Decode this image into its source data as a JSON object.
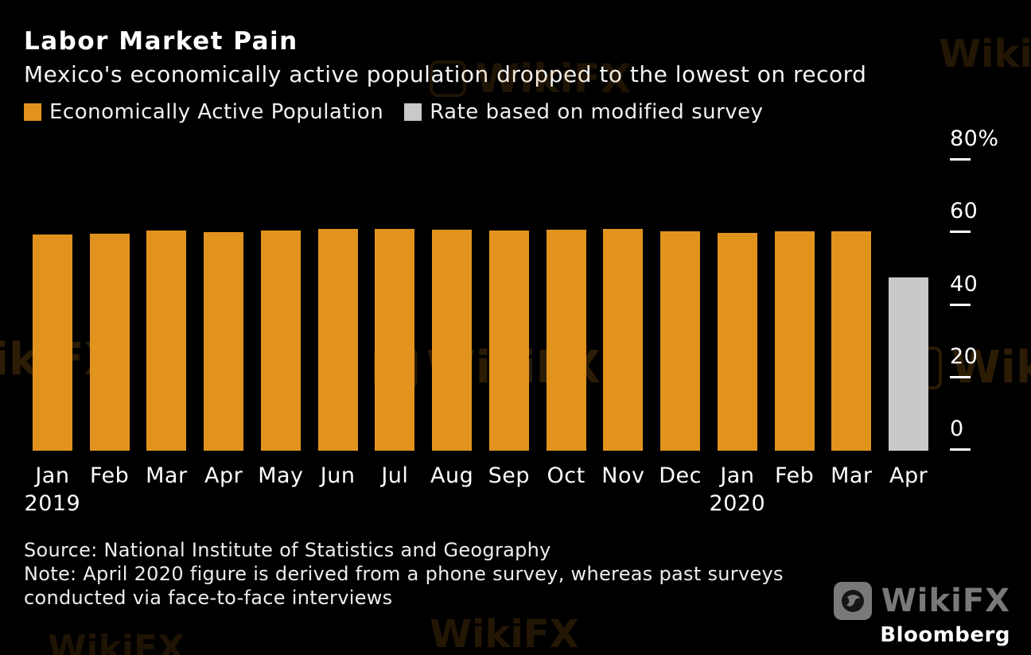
{
  "header": {
    "title": "Labor Market Pain",
    "subtitle": "Mexico's economically active population dropped to the lowest on record"
  },
  "legend": [
    {
      "label": "Economically Active Population",
      "color": "#E2931E"
    },
    {
      "label": "Rate based on modified survey",
      "color": "#C9C9C9"
    }
  ],
  "chart_data": {
    "type": "bar",
    "title": "Labor Market Pain",
    "subtitle": "Mexico's economically active population dropped to the lowest on record",
    "categories": [
      "Jan",
      "Feb",
      "Mar",
      "Apr",
      "May",
      "Jun",
      "Jul",
      "Aug",
      "Sep",
      "Oct",
      "Nov",
      "Dec",
      "Jan",
      "Feb",
      "Mar",
      "Apr"
    ],
    "year_labels": [
      {
        "index": 0,
        "label": "2019"
      },
      {
        "index": 12,
        "label": "2020"
      }
    ],
    "series": [
      {
        "name": "Economically Active Population",
        "color": "#E2931E",
        "values": [
          59.6,
          59.8,
          60.7,
          60.3,
          60.7,
          61.2,
          61.2,
          60.9,
          60.7,
          60.9,
          61.2,
          60.5,
          60.0,
          60.5,
          60.5,
          null
        ]
      },
      {
        "name": "Rate based on modified survey",
        "color": "#C9C9C9",
        "values": [
          null,
          null,
          null,
          null,
          null,
          null,
          null,
          null,
          null,
          null,
          null,
          null,
          null,
          null,
          null,
          47.8
        ]
      }
    ],
    "ylim": [
      0,
      80
    ],
    "yticks": [
      0,
      20,
      40,
      60,
      80
    ],
    "ytick_labels": [
      "0",
      "20",
      "40",
      "60",
      "80%"
    ],
    "y_axis_side": "right",
    "grid": false,
    "legend_position": "top"
  },
  "footer": {
    "source": "Source: National Institute of Statistics and Geography",
    "note_line1": "Note: April 2020 figure is derived from a phone survey, whereas past surveys",
    "note_line2": "conducted via face-to-face interviews"
  },
  "branding": {
    "wikifx": "WikiFX",
    "bloomberg": "Bloomberg"
  },
  "watermark": {
    "text": "WikiFX"
  }
}
